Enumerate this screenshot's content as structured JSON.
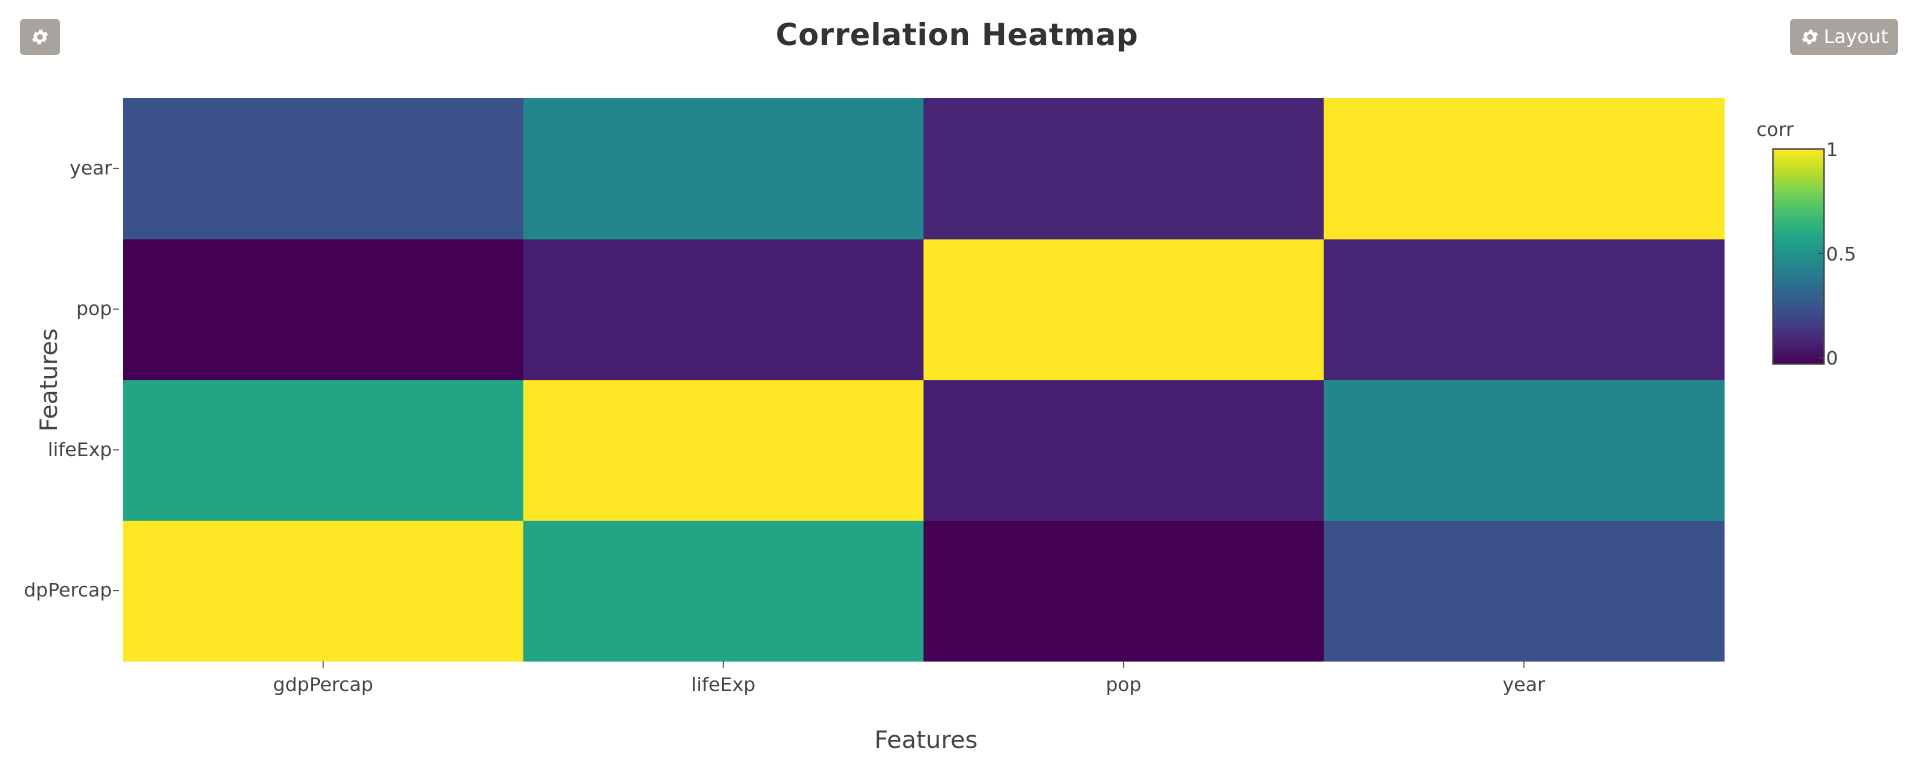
{
  "toolbar": {
    "settings_icon": "gear-icon",
    "layout_icon": "gear-icon",
    "layout_label": "Layout"
  },
  "chart_data": {
    "type": "heatmap",
    "title": "Correlation Heatmap",
    "xlabel": "Features",
    "ylabel": "Features",
    "x": [
      "gdpPercap",
      "lifeExp",
      "pop",
      "year"
    ],
    "y": [
      "gdpPercap",
      "lifeExp",
      "pop",
      "year"
    ],
    "y_tick_labels": [
      "dpPercap",
      "lifeExp",
      "pop",
      "year"
    ],
    "z": [
      [
        1.0,
        0.58,
        -0.03,
        0.23
      ],
      [
        0.58,
        1.0,
        0.06,
        0.44
      ],
      [
        -0.03,
        0.06,
        1.0,
        0.08
      ],
      [
        0.23,
        0.44,
        0.08,
        1.0
      ]
    ],
    "zmin": -0.03,
    "zmax": 1.0,
    "colorscale": "Viridis",
    "colorbar": {
      "title": "corr",
      "tickvals": [
        0,
        0.5,
        1
      ],
      "ticktext": [
        "0",
        "0.5",
        "1"
      ]
    },
    "grid": false,
    "legend": "colorbar-right"
  }
}
